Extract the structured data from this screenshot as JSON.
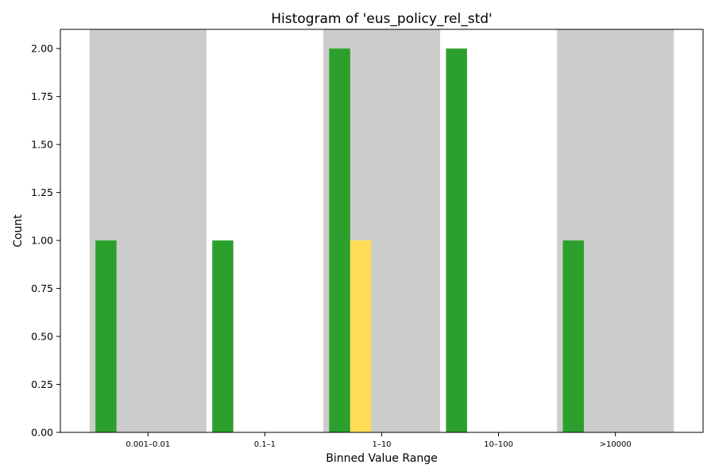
{
  "chart_data": {
    "type": "bar",
    "title": "Histogram of 'eus_policy_rel_std'",
    "xlabel": "Binned Value Range",
    "ylabel": "Count",
    "categories": [
      "0.001–0.01",
      "0.1–1",
      "1–10",
      "10–100",
      ">10000"
    ],
    "ylim": [
      0,
      2.1
    ],
    "yticks": [
      "0.00",
      "0.25",
      "0.50",
      "0.75",
      "1.00",
      "1.25",
      "1.50",
      "1.75",
      "2.00"
    ],
    "shaded_categories": [
      0,
      2,
      4
    ],
    "series": [
      {
        "color": "#2ca02c",
        "values": [
          1,
          1,
          2,
          2,
          1
        ]
      },
      {
        "color": "#ffdd57",
        "values": [
          0,
          0,
          1,
          0,
          0
        ]
      }
    ],
    "shade_color": "#cccccc",
    "grid": false
  }
}
